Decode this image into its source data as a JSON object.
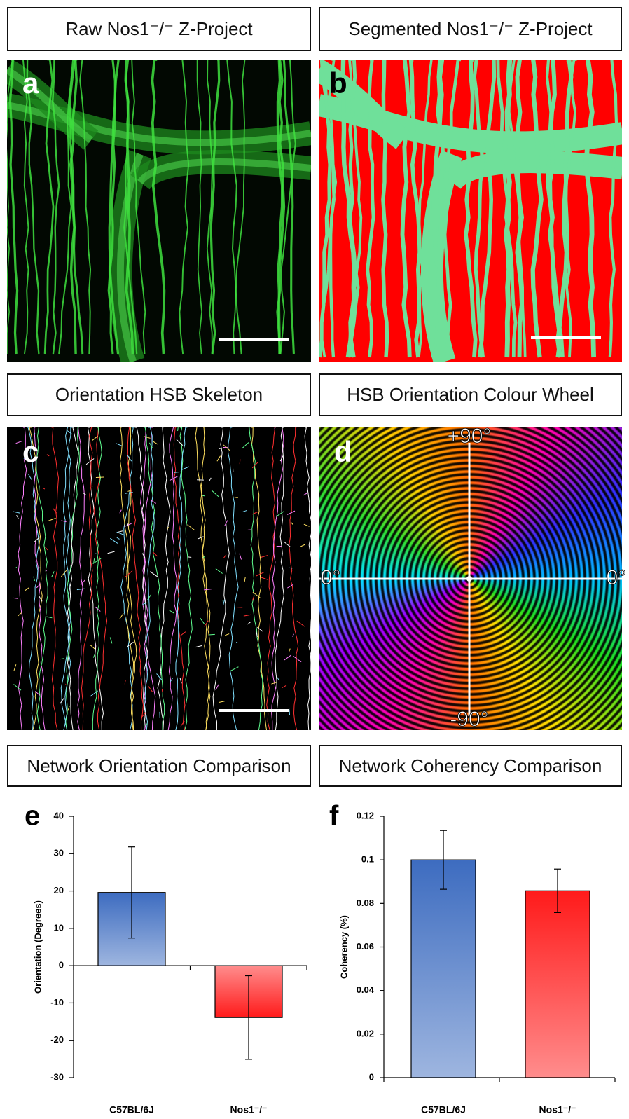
{
  "panels": [
    {
      "letter": "a",
      "title": "Raw Nos1⁻/⁻ Z-Project"
    },
    {
      "letter": "b",
      "title": "Segmented Nos1⁻/⁻ Z-Project"
    },
    {
      "letter": "c",
      "title": "Orientation HSB Skeleton"
    },
    {
      "letter": "d",
      "title": "HSB Orientation Colour Wheel",
      "labels": [
        "+90°",
        "0°",
        "0°",
        "-90°"
      ]
    }
  ],
  "chart_data": [
    {
      "type": "bar",
      "letter": "e",
      "title": "Network Orientation Comparison",
      "y_label": "Orientation (Degrees)",
      "categories": [
        "C57BL/6J",
        "Nos1⁻/⁻"
      ],
      "values": [
        19.6,
        -13.9
      ],
      "errors": [
        12.2,
        11.2
      ],
      "colors": [
        "#3d6cc0",
        "#ff1a1a"
      ],
      "ylim": [
        -30,
        40
      ],
      "yticks": [
        -30,
        -20,
        -10,
        0,
        10,
        20,
        30,
        40
      ]
    },
    {
      "type": "bar",
      "letter": "f",
      "title": "Network Coherency Comparison",
      "y_label": "Coherency (%)",
      "categories": [
        "C57BL/6J",
        "Nos1⁻/⁻"
      ],
      "values": [
        0.1,
        0.0858
      ],
      "errors": [
        0.0135,
        0.01
      ],
      "colors": [
        "#3d6cc0",
        "#ff1a1a"
      ],
      "ylim": [
        0,
        0.12
      ],
      "yticks": [
        0,
        0.02,
        0.04,
        0.06,
        0.08,
        0.1,
        0.12
      ]
    }
  ]
}
